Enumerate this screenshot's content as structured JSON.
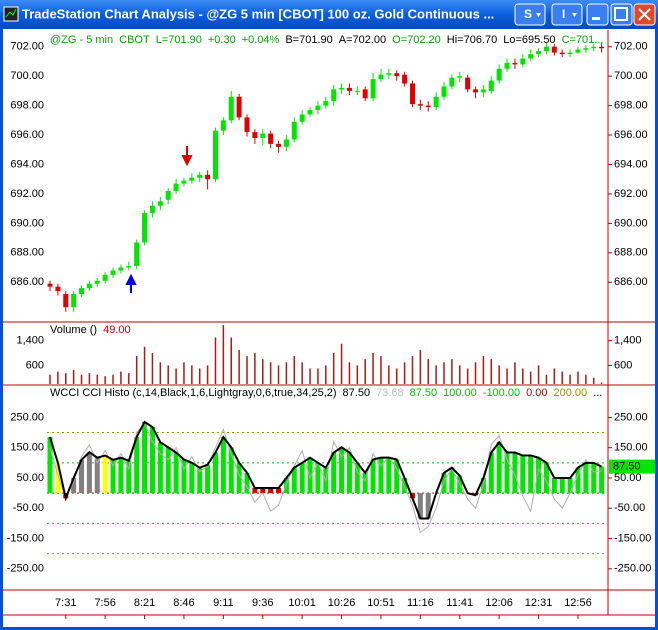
{
  "window": {
    "title": "TradeStation Chart Analysis - @ZG  5 min  [CBOT] 100 oz. Gold Continuous ...",
    "buttons": [
      "S",
      "I"
    ]
  },
  "chart_data": [
    {
      "type": "candlestick",
      "legend": [
        {
          "text": "@ZG - 5 min",
          "color": "#00aa00"
        },
        {
          "text": "CBOT",
          "color": "#00aa00"
        },
        {
          "text": "L=701.90",
          "color": "#00aa00"
        },
        {
          "text": "+0.30",
          "color": "#00aa00"
        },
        {
          "text": "+0.04%",
          "color": "#00aa00"
        },
        {
          "text": "B=701.90",
          "color": "#000000"
        },
        {
          "text": "A=702.00",
          "color": "#000000"
        },
        {
          "text": "O=702.20",
          "color": "#00aa00"
        },
        {
          "text": "Hi=706.70",
          "color": "#000000"
        },
        {
          "text": "Lo=695.50",
          "color": "#000000"
        },
        {
          "text": "C=701...",
          "color": "#00aa00"
        }
      ],
      "categories": [
        null,
        null,
        "7:31",
        null,
        null,
        null,
        null,
        "7:56",
        null,
        null,
        null,
        null,
        "8:21",
        null,
        null,
        null,
        null,
        "8:46",
        null,
        null,
        null,
        null,
        "9:11",
        null,
        null,
        null,
        null,
        "9:36",
        null,
        null,
        null,
        null,
        "10:01",
        null,
        null,
        null,
        null,
        "10:26",
        null,
        null,
        null,
        null,
        "10:51",
        null,
        null,
        null,
        null,
        "11:16",
        null,
        null,
        null,
        null,
        "11:41",
        null,
        null,
        null,
        null,
        "12:06",
        null,
        null,
        null,
        null,
        "12:31",
        null,
        null,
        null,
        null,
        "12:56",
        null,
        null,
        null
      ],
      "open": [
        685.9,
        685.7,
        685.2,
        684.3,
        685.2,
        685.6,
        685.9,
        686.1,
        686.5,
        686.8,
        687.0,
        687.1,
        688.7,
        690.7,
        691.2,
        691.6,
        692.2,
        692.7,
        692.9,
        693.1,
        693.3,
        693.0,
        696.3,
        697.0,
        698.6,
        697.2,
        696.2,
        695.8,
        696.1,
        695.4,
        695.2,
        695.7,
        696.9,
        697.4,
        697.7,
        698.0,
        698.3,
        699.1,
        699.2,
        699.0,
        699.1,
        698.5,
        699.8,
        700.1,
        700.2,
        700.1,
        699.5,
        698.1,
        698.0,
        697.9,
        698.6,
        699.3,
        699.9,
        699.9,
        699.1,
        698.9,
        699.0,
        699.7,
        700.5,
        700.9,
        700.8,
        701.2,
        701.5,
        701.7,
        702.0,
        701.6,
        701.5,
        701.6,
        701.8,
        701.9,
        702.0
      ],
      "high": [
        686.1,
        685.9,
        685.4,
        685.4,
        685.8,
        686.1,
        686.3,
        686.7,
        687.0,
        687.2,
        687.4,
        688.9,
        690.9,
        691.5,
        691.8,
        692.4,
        693.0,
        693.1,
        693.4,
        693.5,
        693.6,
        696.5,
        697.2,
        699.0,
        698.8,
        697.4,
        696.4,
        696.4,
        696.3,
        695.6,
        696.0,
        697.2,
        697.7,
        697.9,
        698.3,
        698.6,
        699.4,
        699.5,
        699.5,
        699.3,
        699.3,
        700.2,
        700.5,
        700.5,
        700.4,
        700.3,
        699.7,
        698.4,
        698.3,
        698.9,
        699.6,
        700.1,
        700.3,
        700.1,
        699.3,
        699.4,
        700.0,
        700.8,
        701.2,
        701.2,
        701.5,
        701.8,
        701.9,
        702.3,
        702.2,
        701.8,
        701.8,
        702.0,
        702.1,
        702.2,
        702.3
      ],
      "low": [
        685.4,
        685.1,
        684.0,
        684.0,
        685.0,
        685.4,
        685.7,
        685.9,
        686.3,
        686.6,
        686.8,
        686.9,
        688.5,
        690.4,
        690.9,
        691.3,
        692.0,
        692.5,
        692.7,
        692.8,
        692.3,
        692.8,
        696.0,
        696.8,
        697.0,
        695.9,
        695.4,
        695.3,
        695.1,
        694.8,
        694.9,
        695.5,
        696.7,
        697.2,
        697.4,
        697.8,
        698.0,
        698.8,
        698.7,
        698.7,
        698.3,
        698.3,
        699.6,
        699.8,
        699.7,
        699.3,
        697.9,
        697.7,
        697.6,
        697.7,
        698.4,
        699.1,
        699.6,
        698.9,
        698.5,
        698.6,
        698.8,
        699.5,
        700.3,
        700.5,
        700.6,
        701.0,
        701.3,
        701.5,
        701.4,
        701.3,
        701.3,
        701.5,
        701.6,
        701.7,
        701.6
      ],
      "close": [
        685.7,
        685.4,
        684.3,
        685.2,
        685.6,
        685.9,
        686.1,
        686.5,
        686.8,
        687.0,
        687.1,
        688.7,
        690.7,
        691.2,
        691.5,
        692.2,
        692.7,
        692.9,
        693.1,
        693.3,
        693.0,
        696.3,
        697.0,
        698.6,
        697.2,
        696.2,
        695.8,
        696.1,
        695.4,
        695.2,
        695.7,
        696.9,
        697.4,
        697.7,
        698.0,
        698.3,
        699.1,
        699.2,
        699.0,
        699.0,
        698.5,
        699.8,
        700.1,
        700.2,
        700.0,
        699.5,
        698.1,
        698.0,
        697.9,
        698.6,
        699.3,
        699.9,
        700.0,
        699.1,
        698.9,
        699.1,
        699.7,
        700.5,
        700.9,
        700.8,
        701.2,
        701.5,
        701.7,
        702.0,
        701.6,
        701.5,
        701.6,
        701.8,
        701.9,
        702.0,
        701.9
      ],
      "up_color": "#00e600",
      "down_color": "#e00000",
      "ylim": [
        683.3,
        703.0
      ],
      "yticks": [
        {
          "value": 686,
          "label": "686.00"
        },
        {
          "value": 688,
          "label": "688.00"
        },
        {
          "value": 690,
          "label": "690.00"
        },
        {
          "value": 692,
          "label": "692.00"
        },
        {
          "value": 694,
          "label": "694.00"
        },
        {
          "value": 696,
          "label": "696.00"
        },
        {
          "value": 698,
          "label": "698.00"
        },
        {
          "value": 700,
          "label": "700.00"
        },
        {
          "value": 702,
          "label": "702.00"
        }
      ]
    },
    {
      "type": "bar",
      "legend": [
        {
          "text": "Volume ()",
          "color": "#000000"
        },
        {
          "text": "49.00",
          "color": "#cc0000"
        }
      ],
      "values": [
        300,
        400,
        350,
        450,
        300,
        350,
        300,
        250,
        300,
        400,
        350,
        900,
        1200,
        1000,
        700,
        600,
        500,
        700,
        600,
        500,
        600,
        1500,
        1900,
        1500,
        1100,
        900,
        1000,
        800,
        700,
        600,
        700,
        900,
        700,
        500,
        500,
        600,
        1000,
        1300,
        700,
        600,
        800,
        1000,
        900,
        600,
        500,
        700,
        900,
        1100,
        800,
        600,
        700,
        800,
        600,
        500,
        700,
        900,
        800,
        600,
        500,
        700,
        500,
        400,
        600,
        300,
        500,
        400,
        300,
        400,
        300,
        200,
        49
      ],
      "color": "#aa1a1a",
      "ylim": [
        0,
        2000
      ],
      "yticks": [
        600,
        {
          "value": 1400,
          "label": "1,400"
        }
      ]
    },
    {
      "type": "histogram_line",
      "legend": [
        {
          "text": "WCCI CCI Histo  (c,14,Black,1,6,Lightgray,0,6,true,34,25,2)",
          "color": "#000000"
        },
        {
          "text": "87.50",
          "color": "#000000"
        },
        {
          "text": "73.68",
          "color": "#c0c0c0"
        },
        {
          "text": "87.50",
          "color": "#00cc00"
        },
        {
          "text": "100.00",
          "color": "#00cc00"
        },
        {
          "text": "-100.00",
          "color": "#00cc00"
        },
        {
          "text": "0.00",
          "color": "#cc0000"
        },
        {
          "text": "200.00",
          "color": "#999900"
        },
        {
          "text": "...",
          "color": "#000000"
        }
      ],
      "series": [
        {
          "color": "#000000",
          "values": [
            185,
            100,
            -17,
            50,
            110,
            135,
            117,
            124,
            110,
            117,
            107,
            185,
            235,
            218,
            168,
            151,
            134,
            111,
            100,
            84,
            94,
            134,
            185,
            151,
            100,
            67,
            17,
            17,
            17,
            17,
            50,
            84,
            100,
            117,
            100,
            84,
            134,
            151,
            134,
            100,
            67,
            111,
            117,
            117,
            111,
            50,
            -17,
            -84,
            -84,
            0,
            67,
            84,
            57,
            0,
            -7,
            50,
            134,
            168,
            134,
            134,
            124,
            124,
            117,
            100,
            50,
            50,
            50,
            84,
            100,
            100,
            87.5
          ]
        },
        {
          "color": "#b0b0b0",
          "values": [
            150,
            60,
            -20,
            40,
            120,
            160,
            100,
            140,
            90,
            130,
            80,
            200,
            230,
            170,
            130,
            110,
            150,
            80,
            120,
            70,
            90,
            150,
            210,
            130,
            60,
            20,
            -30,
            0,
            -60,
            -40,
            30,
            90,
            140,
            50,
            100,
            40,
            170,
            120,
            150,
            70,
            40,
            130,
            90,
            120,
            80,
            20,
            -40,
            -130,
            -110,
            -50,
            40,
            80,
            30,
            -20,
            -50,
            30,
            160,
            190,
            110,
            60,
            -10,
            -60,
            80,
            40,
            -20,
            -50,
            0,
            60,
            110,
            70,
            73.68
          ]
        }
      ],
      "bar_colors": [
        "#00e600",
        "#ffff00",
        "#e00000",
        "#808080",
        "#808080",
        "#808080",
        "#808080",
        "#ffff00",
        "#00e600",
        "#00e600",
        "#00e600",
        "#00e600",
        "#00e600",
        "#00e600",
        "#00e600",
        "#00e600",
        "#00e600",
        "#00e600",
        "#00e600",
        "#00e600",
        "#00e600",
        "#00e600",
        "#00e600",
        "#00e600",
        "#00e600",
        "#00e600",
        "#e00000",
        "#e00000",
        "#e00000",
        "#e00000",
        "#00e600",
        "#00e600",
        "#00e600",
        "#00e600",
        "#00e600",
        "#00e600",
        "#00e600",
        "#00e600",
        "#00e600",
        "#00e600",
        "#00e600",
        "#00e600",
        "#00e600",
        "#00e600",
        "#00e600",
        "#00e600",
        "#e00000",
        "#808080",
        "#808080",
        "#e00000",
        "#00e600",
        "#00e600",
        "#00e600",
        "#e00000",
        "#e00000",
        "#00e600",
        "#00e600",
        "#00e600",
        "#00e600",
        "#00e600",
        "#00e600",
        "#00e600",
        "#00e600",
        "#00e600",
        "#00e600",
        "#00e600",
        "#00e600",
        "#00e600",
        "#00e600",
        "#00e600",
        "#00e600"
      ],
      "levels": [
        {
          "value": 200,
          "color": "#8a9a00"
        },
        {
          "value": 100,
          "color": "#00cc00"
        },
        {
          "value": 0,
          "color": "#dd0000"
        },
        {
          "value": -100,
          "color": "#00cc00"
        },
        {
          "value": -200,
          "color": "#8a9a00"
        }
      ],
      "ylim": [
        -320,
        357
      ],
      "yticks": [
        {
          "value": 250,
          "label": "250.00"
        },
        {
          "value": 150,
          "label": "150.00"
        },
        {
          "value": 50,
          "label": "50.00"
        },
        {
          "value": -50,
          "label": "-50.00"
        },
        {
          "value": -150,
          "label": "-150.00"
        },
        {
          "value": -250,
          "label": "-250.00"
        }
      ]
    }
  ]
}
